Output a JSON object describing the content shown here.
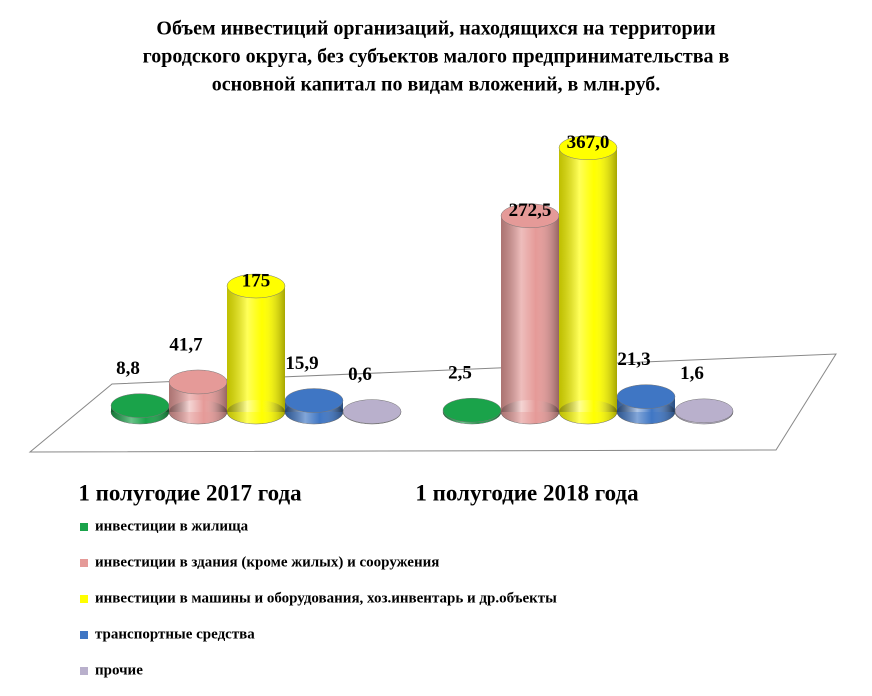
{
  "chart_data": {
    "type": "bar3d",
    "title": "Объем инвестиций  организаций,  находящихся на территории",
    "subtitle": [
      "городского округа, без субъектов малого предпринимательства  в",
      "основной капитал  по видам вложений,  в млн.руб."
    ],
    "categories": [
      "1 полугодие 2017 года",
      "1 полугодие 2018 года"
    ],
    "series": [
      {
        "name": "инвестиции в жилища",
        "color": "#1aa34a",
        "values": [
          8.8,
          2.5
        ],
        "value_labels": [
          "8,8",
          "2,5"
        ]
      },
      {
        "name": "инвестиции в здания (кроме жилых) и сооружения",
        "color": "#e59a98",
        "values": [
          41.7,
          272.5
        ],
        "value_labels": [
          "41,7",
          "272,5"
        ]
      },
      {
        "name": "инвестиции в машины и оборудования, хоз.инвентарь и др.объекты",
        "color": "#ffff00",
        "values": [
          175,
          367.0
        ],
        "value_labels": [
          "175",
          "367,0"
        ]
      },
      {
        "name": "транспортные средства",
        "color": "#3f76c4",
        "values": [
          15.9,
          21.3
        ],
        "value_labels": [
          "15,9",
          "21,3"
        ]
      },
      {
        "name": "прочие",
        "color": "#b9b0cc",
        "values": [
          0.6,
          1.6
        ],
        "value_labels": [
          "0,6",
          "1,6"
        ]
      }
    ]
  }
}
